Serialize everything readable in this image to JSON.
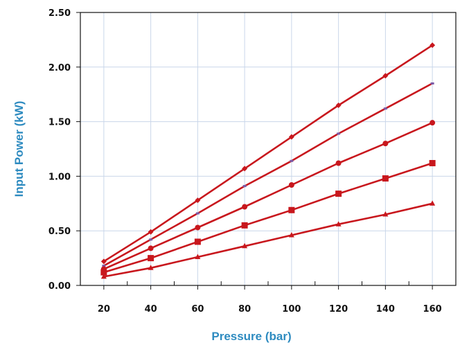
{
  "chart_data": {
    "type": "line",
    "title": "",
    "xlabel": "Pressure (bar)",
    "ylabel": "Input Power (kW)",
    "x": [
      20,
      40,
      60,
      80,
      100,
      120,
      140,
      160
    ],
    "x_ticks": [
      "20",
      "40",
      "60",
      "80",
      "100",
      "120",
      "140",
      "160"
    ],
    "y_ticks": [
      "0.00",
      "0.50",
      "1.00",
      "1.50",
      "2.00",
      "2.50"
    ],
    "xlim": [
      10,
      170
    ],
    "ylim": [
      0,
      2.5
    ],
    "grid": "vertical at x ticks and horizontal at y ticks",
    "legend": "none",
    "series": [
      {
        "marker": "diamond",
        "values": [
          0.22,
          0.49,
          0.78,
          1.07,
          1.36,
          1.65,
          1.92,
          2.2
        ]
      },
      {
        "marker": "dash",
        "values": [
          0.18,
          0.42,
          0.66,
          0.91,
          1.14,
          1.39,
          1.62,
          1.85
        ]
      },
      {
        "marker": "circle",
        "values": [
          0.15,
          0.34,
          0.53,
          0.72,
          0.92,
          1.12,
          1.3,
          1.49
        ]
      },
      {
        "marker": "square",
        "values": [
          0.12,
          0.25,
          0.4,
          0.55,
          0.69,
          0.84,
          0.98,
          1.12
        ]
      },
      {
        "marker": "triangle",
        "values": [
          0.08,
          0.16,
          0.26,
          0.36,
          0.46,
          0.56,
          0.65,
          0.75
        ]
      }
    ]
  },
  "colors": {
    "line": "#C8171D",
    "marker_dash": "#7B5AA6",
    "grid_h": "#C9D6EA",
    "grid_v": "#C9D6EA",
    "axis_title": "#2E8BC0",
    "frame": "#111111"
  }
}
